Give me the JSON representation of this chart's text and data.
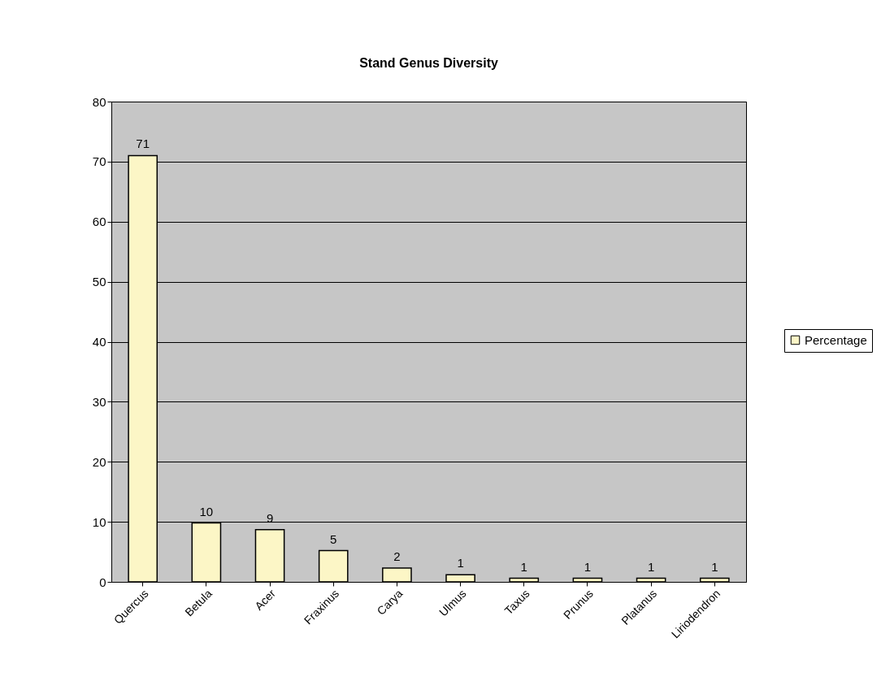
{
  "chart_data": {
    "type": "bar",
    "title": "Stand Genus Diversity",
    "categories": [
      "Quercus",
      "Betula",
      "Acer",
      "Fraxinus",
      "Carya",
      "Ulmus",
      "Taxus",
      "Prunus",
      "Platanus",
      "Liriodendron"
    ],
    "series": [
      {
        "name": "Percentage",
        "color": "#fcf6c6",
        "values": [
          71,
          9.8,
          8.7,
          5.2,
          2.3,
          1.2,
          0.6,
          0.6,
          0.6,
          0.6
        ],
        "value_labels": [
          "71",
          "10",
          "9",
          "5",
          "2",
          "1",
          "1",
          "1",
          "1",
          "1"
        ]
      }
    ],
    "ylim": [
      0,
      80
    ],
    "yticks": [
      0,
      10,
      20,
      30,
      40,
      50,
      60,
      70,
      80
    ],
    "grid": "y",
    "legend": "right"
  }
}
